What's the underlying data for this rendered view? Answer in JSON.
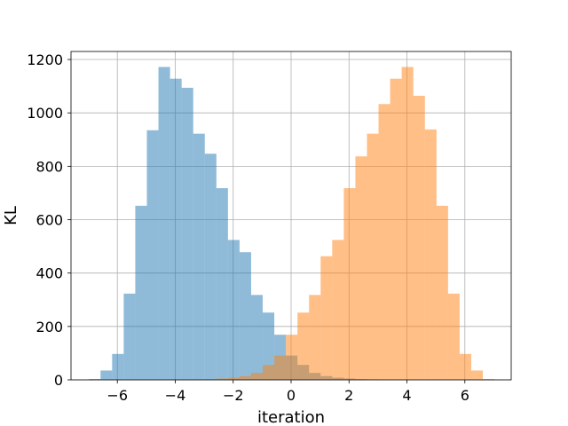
{
  "chart_data": {
    "type": "bar",
    "subtype": "overlapping-histogram",
    "title": "",
    "xlabel": "iteration",
    "ylabel": "KL",
    "xlim": [
      -7.6,
      7.6
    ],
    "ylim": [
      0,
      1230
    ],
    "xticks": [
      -6,
      -4,
      -2,
      0,
      2,
      4,
      6
    ],
    "yticks": [
      0,
      200,
      400,
      600,
      800,
      1000,
      1200
    ],
    "xtick_labels": [
      "−6",
      "−4",
      "−2",
      "0",
      "2",
      "4",
      "6"
    ],
    "ytick_labels": [
      "0",
      "200",
      "400",
      "600",
      "800",
      "1000",
      "1200"
    ],
    "grid": true,
    "bin_start": -6.98,
    "bin_width": 0.4,
    "series": [
      {
        "color": "#1f77b4",
        "alpha": 0.5,
        "values": [
          3,
          35,
          97,
          323,
          652,
          935,
          1172,
          1128,
          1094,
          922,
          847,
          718,
          524,
          478,
          318,
          252,
          169,
          91,
          56,
          26,
          14,
          8,
          5,
          3,
          2,
          1,
          1,
          0,
          0,
          0,
          0,
          0,
          0,
          0,
          0
        ]
      },
      {
        "color": "#ff7f0e",
        "alpha": 0.5,
        "values": [
          0,
          0,
          0,
          0,
          0,
          0,
          0,
          1,
          1,
          2,
          3,
          5,
          8,
          14,
          26,
          56,
          91,
          169,
          252,
          318,
          463,
          524,
          718,
          837,
          922,
          1033,
          1128,
          1172,
          1064,
          938,
          652,
          323,
          97,
          35,
          3
        ]
      }
    ]
  }
}
